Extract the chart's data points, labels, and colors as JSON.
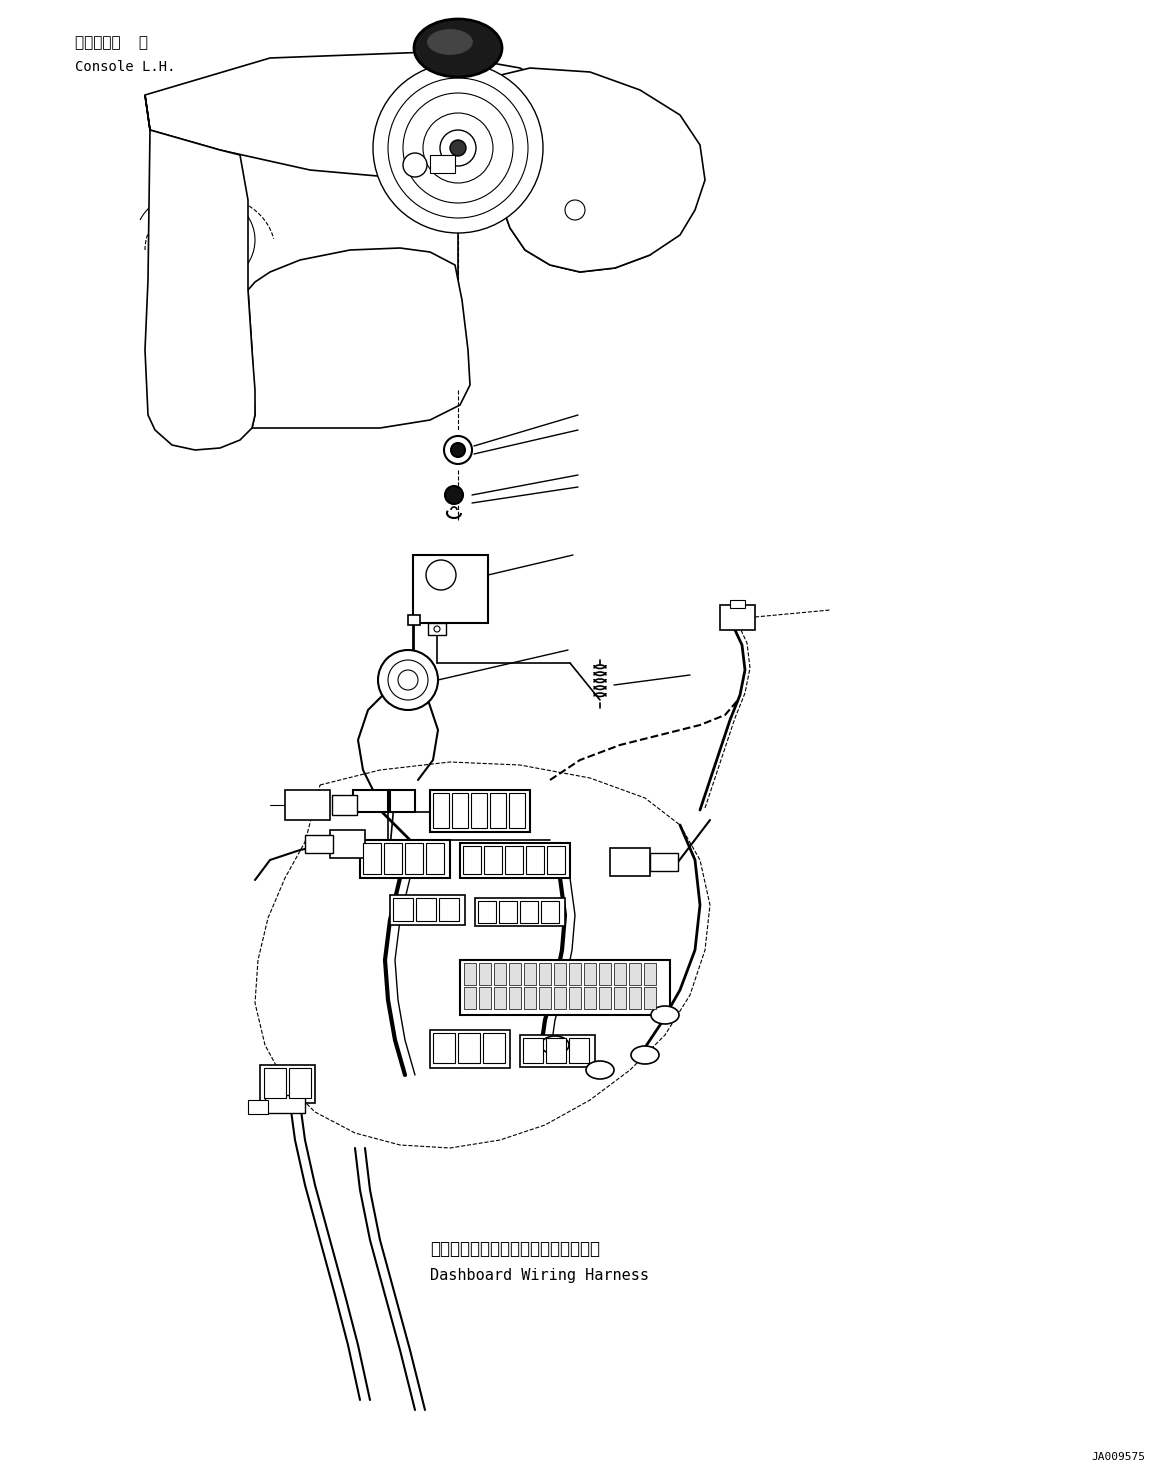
{
  "background_color": "#ffffff",
  "text_color": "#000000",
  "label_top_jp": "コンソール  左",
  "label_top_en": "Console L.H.",
  "label_bottom_jp": "ダッシュボードワイヤリングハーネス",
  "label_bottom_en": "Dashboard Wiring Harness",
  "code": "JA009575",
  "figsize": [
    11.63,
    14.84
  ],
  "dpi": 100
}
